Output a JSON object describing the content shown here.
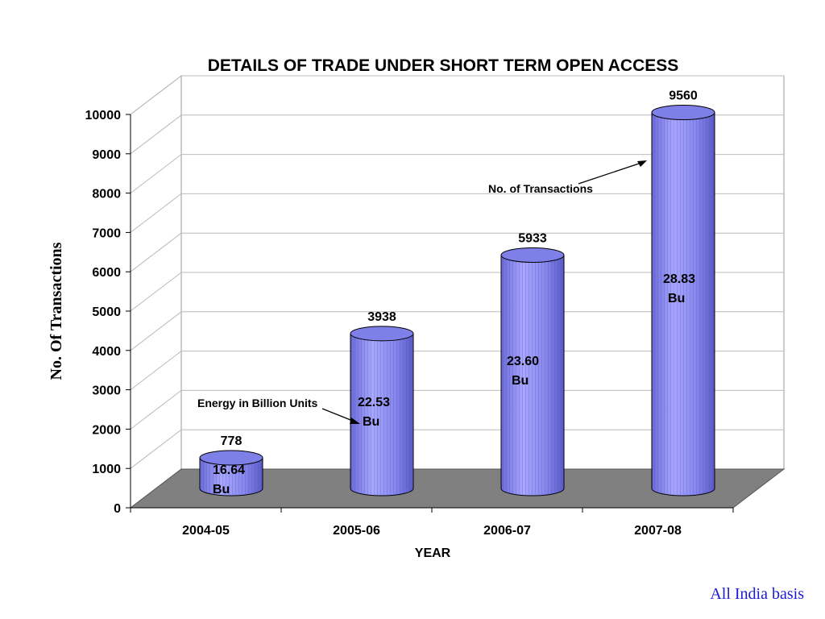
{
  "chart_data": {
    "type": "bar",
    "title": "DETAILS OF TRADE UNDER SHORT TERM OPEN ACCESS",
    "xlabel": "YEAR",
    "ylabel": "No. Of Transactions",
    "ylim": [
      0,
      10000
    ],
    "yticks": [
      "0",
      "1000",
      "2000",
      "3000",
      "4000",
      "5000",
      "6000",
      "7000",
      "8000",
      "9000",
      "10000"
    ],
    "categories": [
      "2004-05",
      "2005-06",
      "2006-07",
      "2007-08"
    ],
    "values": [
      778,
      3938,
      5933,
      9560
    ],
    "value_labels": [
      "778",
      "3938",
      "5933",
      "9560"
    ],
    "energy_labels": [
      [
        "16.64",
        "Bu"
      ],
      [
        "22.53",
        "Bu"
      ],
      [
        "23.60",
        "Bu"
      ],
      [
        "28.83",
        "Bu"
      ]
    ],
    "annotations": {
      "transactions": "No. of Transactions",
      "energy": "Energy in Billion Units"
    },
    "grid": true,
    "bar_color": "#8c8cf0",
    "floor_color": "#808080"
  },
  "footer": "All India basis"
}
